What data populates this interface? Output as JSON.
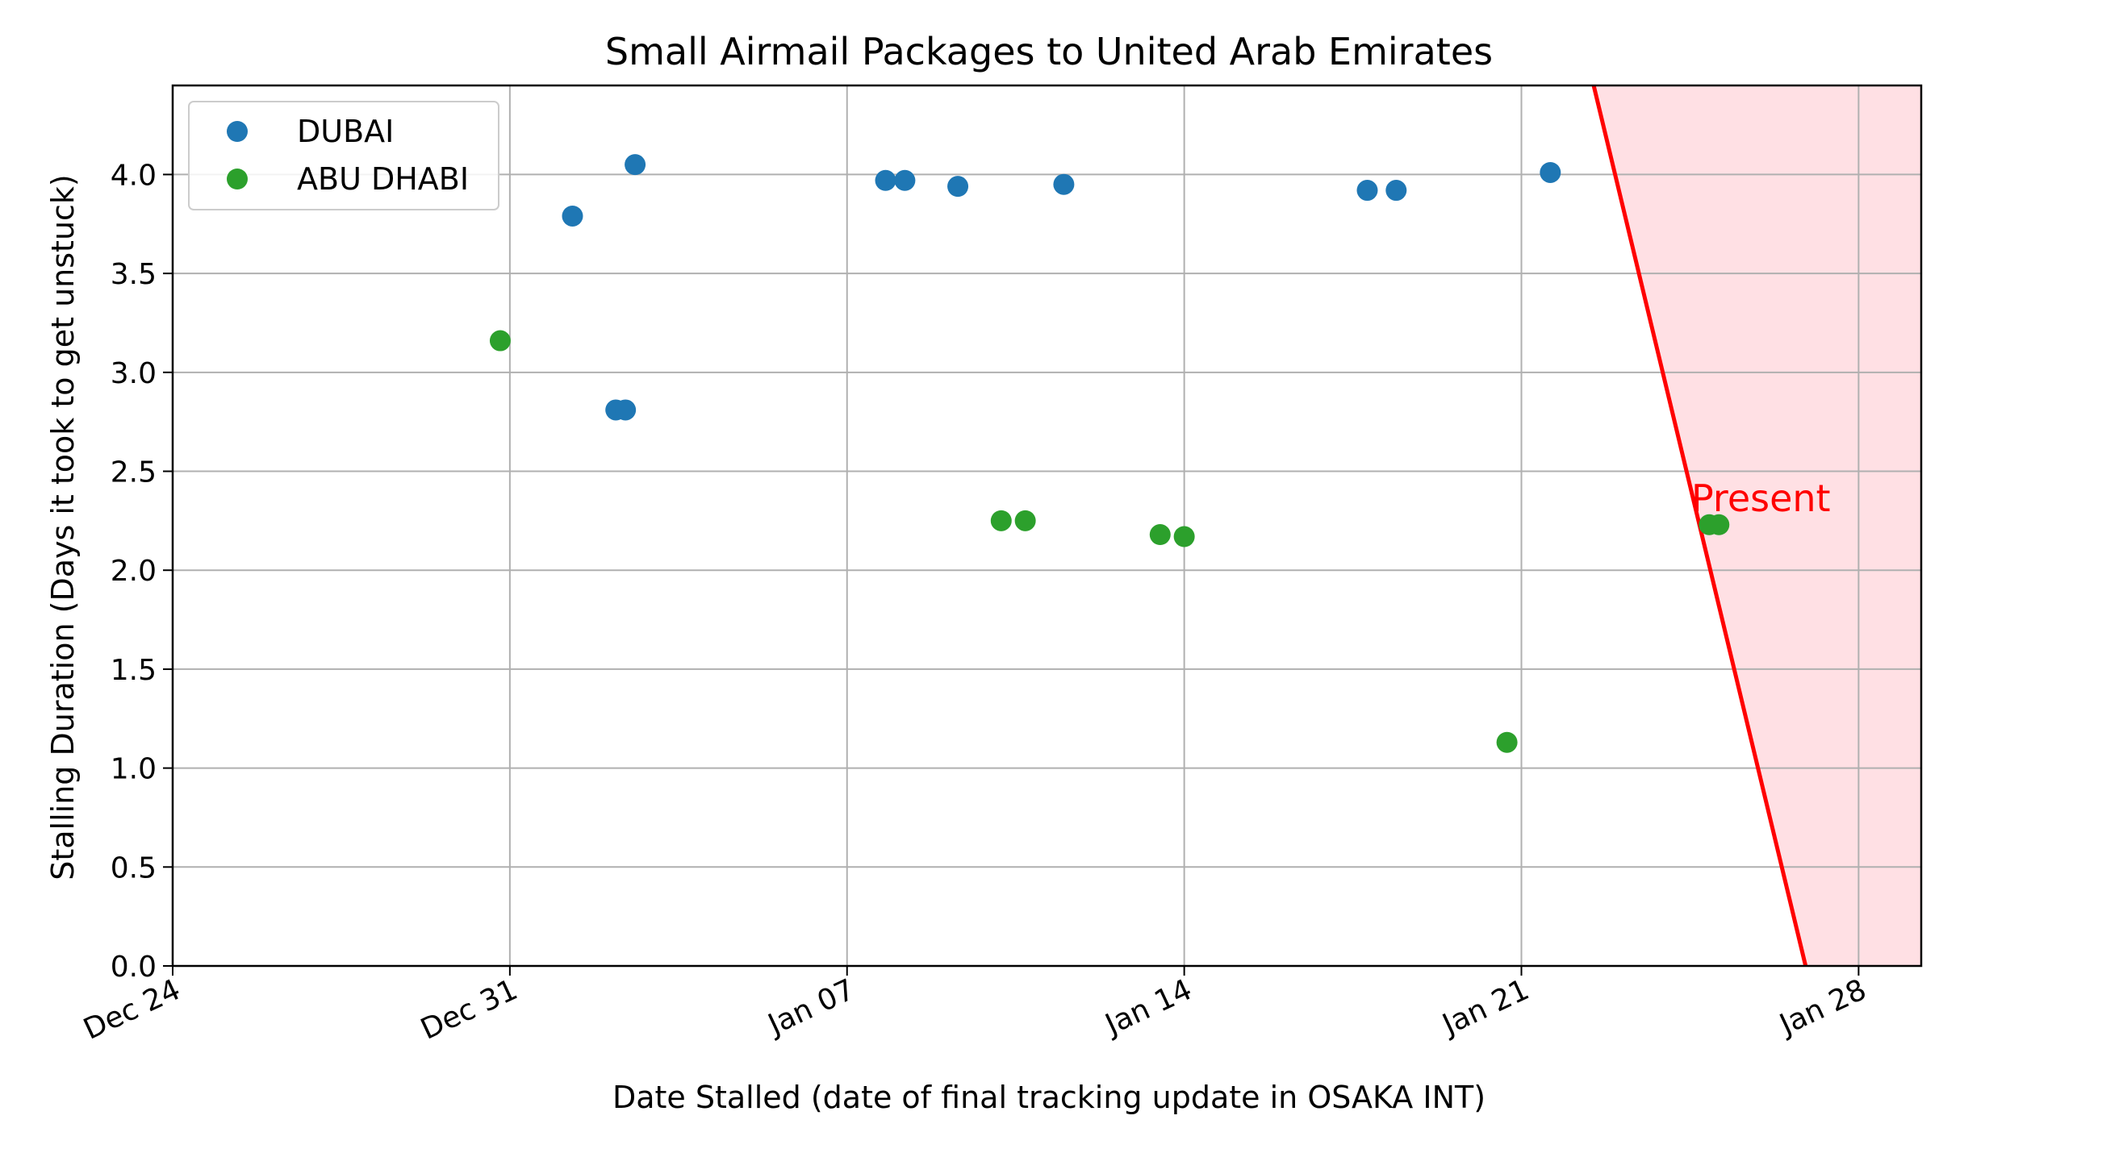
{
  "chart_data": {
    "type": "scatter",
    "title": "Small Airmail Packages to United Arab Emirates",
    "xlabel": "Date Stalled (date of final tracking update in OSAKA INT)",
    "ylabel": "Stalling Duration (Days it took to get unstuck)",
    "xlim": [
      "Dec 24",
      "Jan 29.3"
    ],
    "ylim": [
      0,
      4.45
    ],
    "x_tick_labels": [
      "Dec 24",
      "Dec 31",
      "Jan 07",
      "Jan 14",
      "Jan 21",
      "Jan 28"
    ],
    "y_ticks": [
      0.0,
      0.5,
      1.0,
      1.5,
      2.0,
      2.5,
      3.0,
      3.5,
      4.0
    ],
    "y_tick_labels": [
      "0.0",
      "0.5",
      "1.0",
      "1.5",
      "2.0",
      "2.5",
      "3.0",
      "3.5",
      "4.0"
    ],
    "grid": true,
    "legend_position": "top-left",
    "series": [
      {
        "name": "DUBAI",
        "color": "#1f77b4",
        "x": [
          "Jan 1.3",
          "Jan 2.2",
          "Jan 2.4",
          "Jan 2.6",
          "Jan 7.8",
          "Jan 8.2",
          "Jan 9.3",
          "Jan 11.5",
          "Jan 17.8",
          "Jan 18.4",
          "Jan 21.6"
        ],
        "y": [
          3.79,
          2.81,
          2.81,
          4.05,
          3.97,
          3.97,
          3.94,
          3.95,
          3.92,
          3.92,
          4.01
        ]
      },
      {
        "name": "ABU DHABI",
        "color": "#2ca02c",
        "x": [
          "Dec 30.8",
          "Jan 10.2",
          "Jan 10.7",
          "Jan 13.5",
          "Jan 14.0",
          "Jan 20.7",
          "Jan 24.9",
          "Jan 25.1"
        ],
        "y": [
          3.16,
          2.25,
          2.25,
          2.18,
          2.17,
          1.13,
          2.23,
          2.23
        ]
      }
    ],
    "present_line": {
      "label": "Present",
      "color": "#ff0000",
      "fill_color": "#ffe0e4",
      "top": {
        "x": "Jan 22.5",
        "y": 4.45
      },
      "bottom": {
        "x": "Jan 26.9",
        "y": 0.0
      }
    }
  }
}
